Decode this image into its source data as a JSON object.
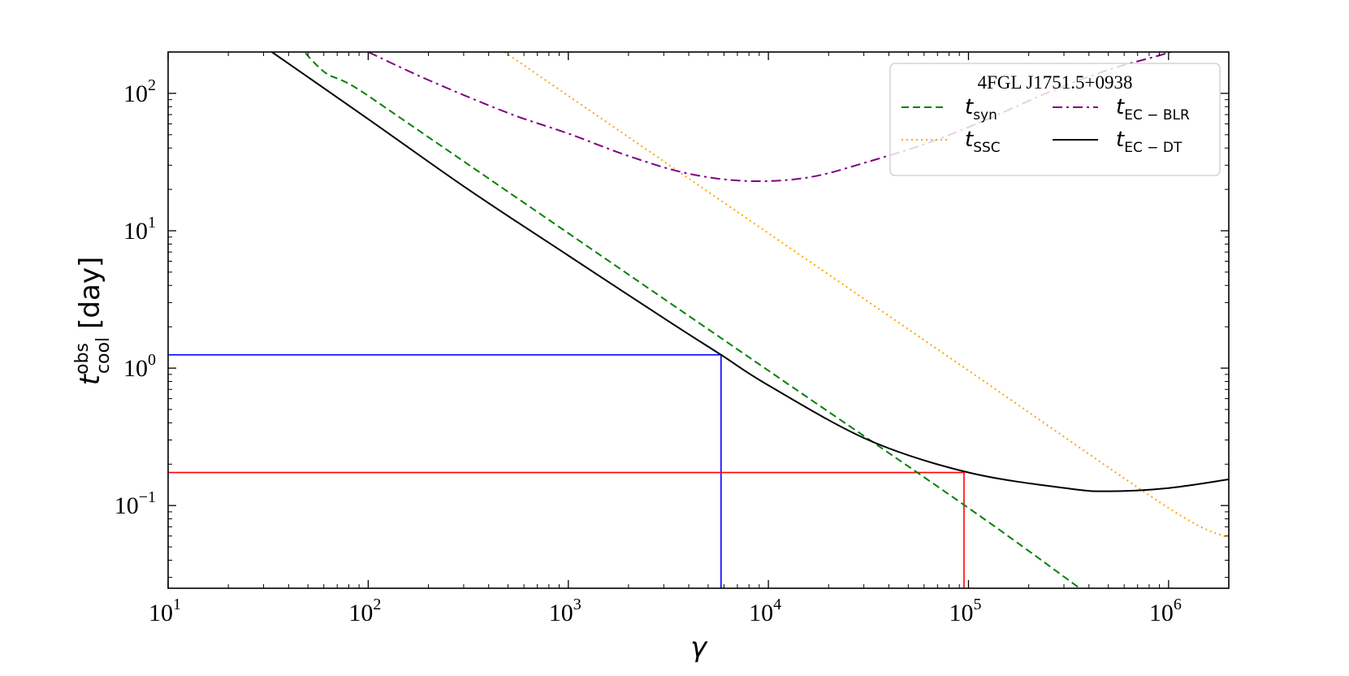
{
  "chart_data": {
    "type": "line",
    "title": "",
    "xlabel": "γ",
    "ylabel": {
      "base": "t",
      "superscript": "obs",
      "subscript": "cool",
      "unit": "[day]"
    },
    "xscale": "log",
    "yscale": "log",
    "xlim": [
      10,
      2000000
    ],
    "ylim": [
      0.025,
      200
    ],
    "grid": false,
    "xticks": [
      {
        "value": 10,
        "base": "10",
        "exp": "1"
      },
      {
        "value": 100,
        "base": "10",
        "exp": "2"
      },
      {
        "value": 1000,
        "base": "10",
        "exp": "3"
      },
      {
        "value": 10000,
        "base": "10",
        "exp": "4"
      },
      {
        "value": 100000,
        "base": "10",
        "exp": "5"
      },
      {
        "value": 1000000,
        "base": "10",
        "exp": "6"
      }
    ],
    "yticks": [
      {
        "value": 0.1,
        "base": "10",
        "exp": "−1"
      },
      {
        "value": 1,
        "base": "10",
        "exp": "0"
      },
      {
        "value": 10,
        "base": "10",
        "exp": "1"
      },
      {
        "value": 100,
        "base": "10",
        "exp": "2"
      }
    ],
    "legend": {
      "title": "4FGL J1751.5+0938",
      "placement": "top-right",
      "columns": 2
    },
    "series": [
      {
        "name": "t_syn",
        "label": {
          "main": "t",
          "sub": "syn"
        },
        "color": "#008000",
        "dash": "dashed",
        "x": [
          10,
          48,
          100,
          1000,
          10000,
          100000,
          360000
        ],
        "y": [
          4100,
          200,
          96,
          9.6,
          0.96,
          0.096,
          0.025
        ]
      },
      {
        "name": "t_SSC",
        "label": {
          "main": "t",
          "sub": "SSC"
        },
        "color": "#ffa500",
        "dash": "dotted",
        "x": [
          480,
          1000,
          10000,
          100000,
          1000000,
          2000000
        ],
        "y": [
          200,
          96,
          9.6,
          0.96,
          0.096,
          0.058
        ]
      },
      {
        "name": "t_EC-BLR",
        "label": {
          "main": "t",
          "sub": "EC − BLR"
        },
        "color": "#800080",
        "dash": "dashdot",
        "x": [
          100,
          200,
          500,
          1000,
          2000,
          4000,
          8000,
          16000,
          32000,
          64000,
          128000,
          256000,
          512000,
          1024000,
          1900000
        ],
        "y": [
          200,
          125,
          72,
          51,
          35,
          26,
          23,
          24.5,
          32,
          44,
          66,
          103,
          150,
          200,
          280
        ]
      },
      {
        "name": "t_EC-DT",
        "label": {
          "main": "t",
          "sub": "EC − DT"
        },
        "color": "#000000",
        "dash": "solid",
        "x": [
          33,
          100,
          316,
          1000,
          3160,
          5800,
          10000,
          31600,
          100000,
          316000,
          510000,
          1000000,
          2000000
        ],
        "y": [
          200,
          65,
          20,
          6.6,
          2.2,
          1.25,
          0.75,
          0.3,
          0.174,
          0.133,
          0.127,
          0.134,
          0.155
        ]
      }
    ],
    "markers": [
      {
        "name": "blue-marker",
        "color": "#0000ff",
        "x": 5800,
        "y": 1.25
      },
      {
        "name": "red-marker",
        "color": "#ff0000",
        "x": 95000,
        "y": 0.174
      }
    ]
  }
}
